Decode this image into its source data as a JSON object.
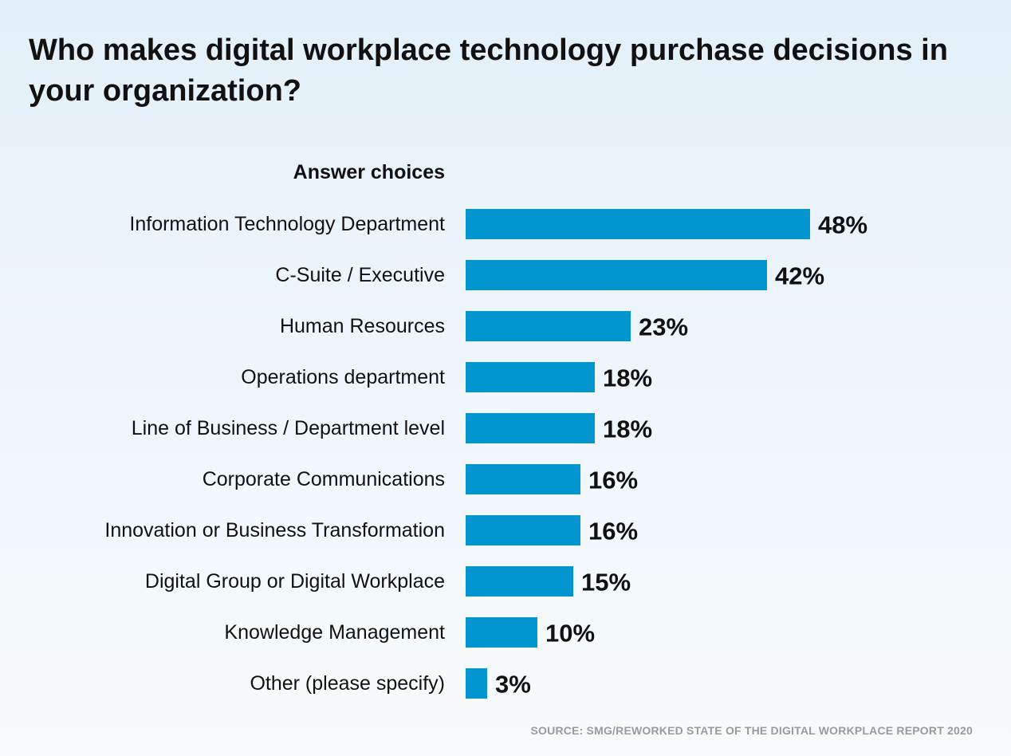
{
  "colors": {
    "bar": "#0395cf",
    "text": "#111111",
    "source": "#9a9a9a"
  },
  "chart_data": {
    "type": "bar",
    "orientation": "horizontal",
    "title": "Who makes digital workplace technology purchase decisions in your organization?",
    "category_header": "Answer choices",
    "categories": [
      "Information Technology Department",
      "C-Suite / Executive",
      "Human Resources",
      "Operations department",
      "Line of Business / Department level",
      "Corporate Communications",
      "Innovation or Business Transformation",
      "Digital Group or Digital Workplace",
      "Knowledge Management",
      "Other (please specify)"
    ],
    "values": [
      48,
      42,
      23,
      18,
      18,
      16,
      16,
      15,
      10,
      3
    ],
    "value_labels": [
      "48%",
      "42%",
      "23%",
      "18%",
      "18%",
      "16%",
      "16%",
      "15%",
      "10%",
      "3%"
    ],
    "unit": "%",
    "grid": false,
    "legend": "none",
    "source": "SOURCE: SMG/REWORKED STATE OF THE DIGITAL WORKPLACE REPORT 2020"
  }
}
